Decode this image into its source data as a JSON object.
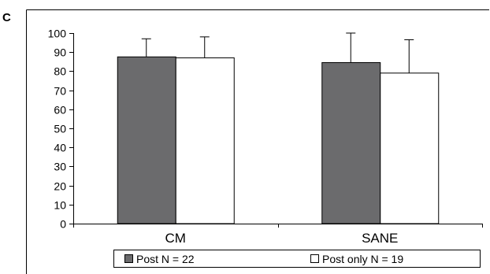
{
  "panel_label": "C",
  "chart_data": {
    "type": "bar",
    "categories": [
      "CM",
      "SANE"
    ],
    "series": [
      {
        "name": "Post N = 22",
        "values": [
          87.5,
          84.5
        ],
        "error": [
          9.5,
          15.5
        ],
        "color": "#6b6b6d"
      },
      {
        "name": "Post only N = 19",
        "values": [
          87.0,
          79.0
        ],
        "error": [
          11.0,
          17.5
        ],
        "color": "#ffffff"
      }
    ],
    "ylim": [
      0,
      100
    ],
    "yticks": [
      0,
      10,
      20,
      30,
      40,
      50,
      60,
      70,
      80,
      90,
      100
    ],
    "grid": false,
    "legend_position": "bottom"
  }
}
